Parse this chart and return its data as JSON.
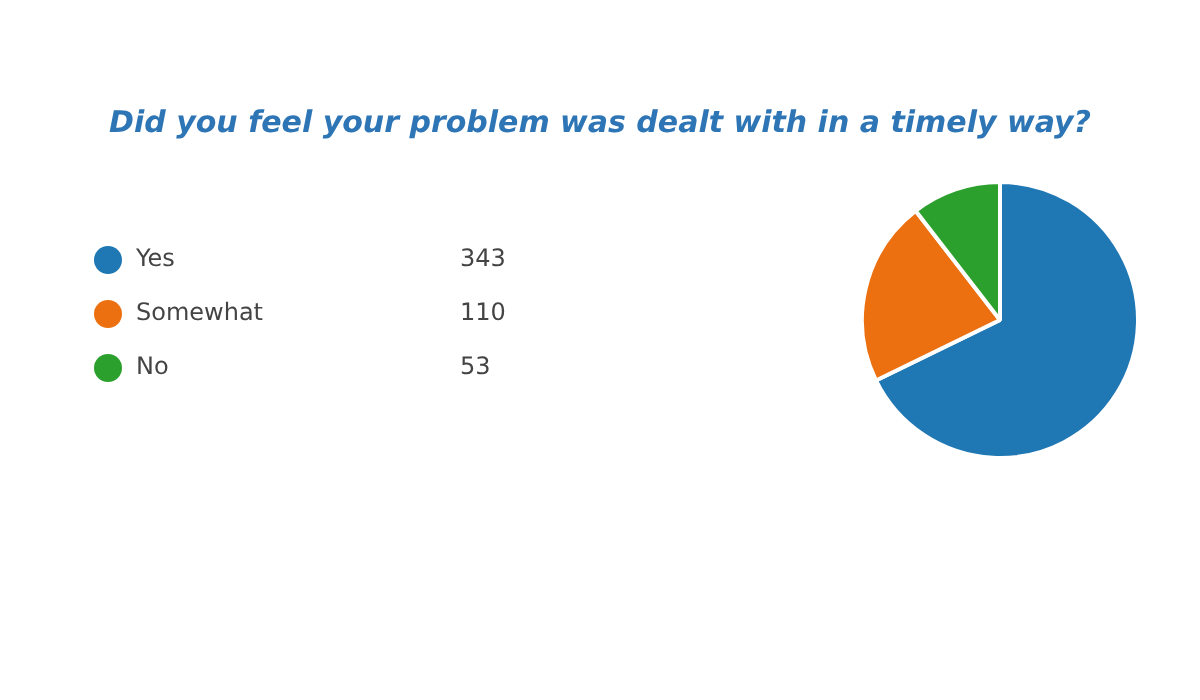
{
  "chart_data": {
    "type": "pie",
    "title": "Did you feel your problem was dealt with in a timely way?",
    "categories": [
      "Yes",
      "Somewhat",
      "No"
    ],
    "values": [
      343,
      110,
      53
    ],
    "colors": [
      "#1f77b4",
      "#ec7010",
      "#2ca02c"
    ],
    "legend": "left",
    "data_labels": true
  }
}
